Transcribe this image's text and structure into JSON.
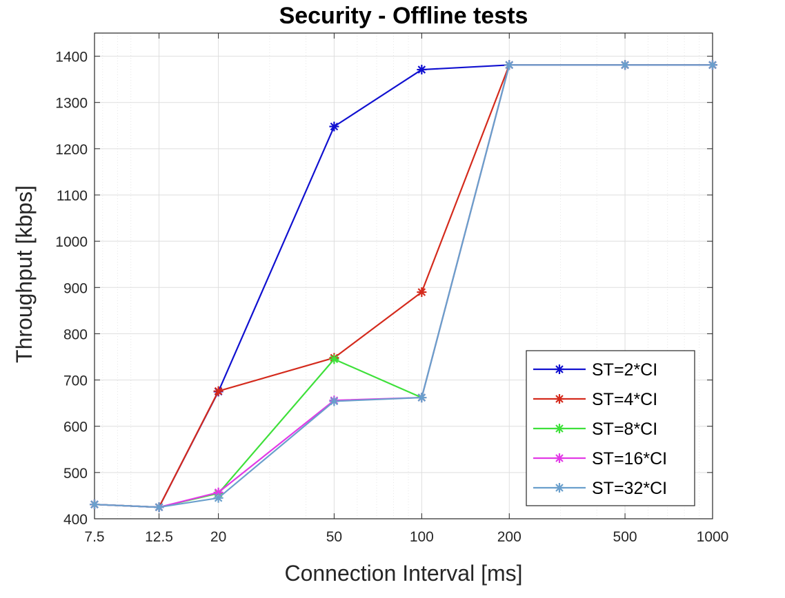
{
  "chart_data": {
    "type": "line",
    "title": "Security - Offline tests",
    "xlabel": "Connection Interval [ms]",
    "ylabel": "Throughput [kbps]",
    "xscale": "log",
    "xlim": [
      7.5,
      1000
    ],
    "ylim": [
      400,
      1450
    ],
    "xticks": [
      7.5,
      12.5,
      20,
      50,
      100,
      200,
      500,
      1000
    ],
    "xtick_labels": [
      "7.5",
      "12.5",
      "20",
      "50",
      "100",
      "200",
      "500",
      "1000"
    ],
    "yticks": [
      400,
      500,
      600,
      700,
      800,
      900,
      1000,
      1100,
      1200,
      1300,
      1400
    ],
    "ytick_labels": [
      "400",
      "500",
      "600",
      "700",
      "800",
      "900",
      "1000",
      "1100",
      "1200",
      "1300",
      "1400"
    ],
    "grid": true,
    "legend_position": "bottom-right",
    "marker": "asterisk",
    "series": [
      {
        "name": "ST=2*CI",
        "color": "#1010d0",
        "x": [
          7.5,
          12.5,
          20,
          50,
          100,
          200,
          500,
          1000
        ],
        "y": [
          431,
          425,
          675,
          1248,
          1371,
          1381,
          1381,
          1381
        ]
      },
      {
        "name": "ST=4*CI",
        "color": "#d42a1c",
        "x": [
          7.5,
          12.5,
          20,
          50,
          100,
          200,
          500,
          1000
        ],
        "y": [
          431,
          425,
          676,
          748,
          890,
          1381,
          1381,
          1381
        ]
      },
      {
        "name": "ST=8*CI",
        "color": "#3ee03a",
        "x": [
          7.5,
          12.5,
          20,
          50,
          100,
          200,
          500,
          1000
        ],
        "y": [
          431,
          425,
          455,
          745,
          662,
          1381,
          1381,
          1381
        ]
      },
      {
        "name": "ST=16*CI",
        "color": "#e23ae6",
        "x": [
          7.5,
          12.5,
          20,
          50,
          100,
          200,
          500,
          1000
        ],
        "y": [
          431,
          425,
          457,
          656,
          662,
          1381,
          1381,
          1381
        ]
      },
      {
        "name": "ST=32*CI",
        "color": "#6a9fcc",
        "x": [
          7.5,
          12.5,
          20,
          50,
          100,
          200,
          500,
          1000
        ],
        "y": [
          431,
          425,
          445,
          654,
          662,
          1381,
          1381,
          1381
        ]
      }
    ]
  }
}
